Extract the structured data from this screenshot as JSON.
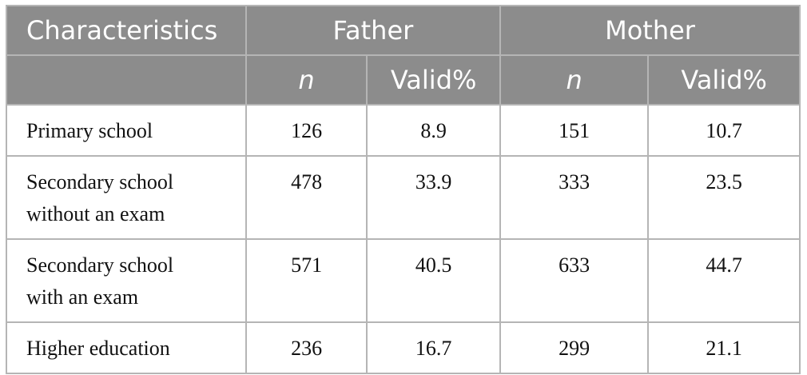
{
  "table": {
    "header": {
      "label": "Characteristics",
      "groups": [
        "Father",
        "Mother"
      ],
      "subheaders": [
        "n",
        "Valid%",
        "n",
        "Valid%"
      ]
    },
    "rows": [
      [
        "Primary school",
        126,
        8.9,
        151,
        10.7
      ],
      [
        "Secondary school without an exam",
        478,
        33.9,
        333,
        23.5
      ],
      [
        "Secondary school with an exam",
        571,
        40.5,
        633,
        44.7
      ],
      [
        "Higher education",
        236,
        16.7,
        299,
        21.1
      ]
    ]
  }
}
